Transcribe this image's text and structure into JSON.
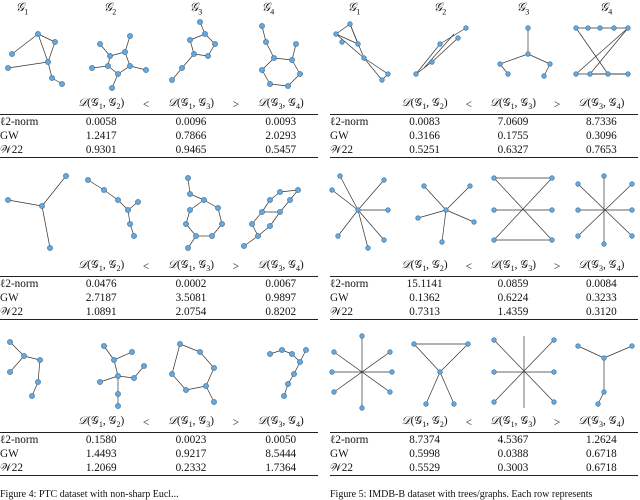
{
  "graph_labels": [
    "𝒢1",
    "𝒢2",
    "𝒢3",
    "𝒢4"
  ],
  "header_cols": [
    "𝒟(𝒢1, 𝒢2)",
    "<",
    "𝒟(𝒢1, 𝒢3)",
    ">",
    "𝒟(𝒢3, 𝒢4)"
  ],
  "left_tables": [
    {
      "rows": [
        {
          "method": "ℓ2-norm",
          "v": [
            "0.0058",
            "0.0096",
            "0.0093"
          ],
          "bold": [
            false,
            false,
            false
          ]
        },
        {
          "method": "GW",
          "v": [
            "1.2417",
            "0.7866",
            "2.0293"
          ],
          "bold": [
            false,
            false,
            false
          ]
        },
        {
          "method": "𝒲22",
          "v": [
            "0.9301",
            "0.9465",
            "0.5457"
          ],
          "bold": [
            true,
            true,
            true
          ]
        }
      ]
    },
    {
      "rows": [
        {
          "method": "ℓ2-norm",
          "v": [
            "0.0476",
            "0.0002",
            "0.0067"
          ],
          "bold": [
            false,
            false,
            false
          ]
        },
        {
          "method": "GW",
          "v": [
            "2.7187",
            "3.5081",
            "0.9897"
          ],
          "bold": [
            true,
            true,
            true
          ]
        },
        {
          "method": "𝒲22",
          "v": [
            "1.0891",
            "2.0754",
            "0.8202"
          ],
          "bold": [
            true,
            true,
            true
          ]
        }
      ]
    },
    {
      "rows": [
        {
          "method": "ℓ2-norm",
          "v": [
            "0.1580",
            "0.0023",
            "0.0050"
          ],
          "bold": [
            false,
            false,
            false
          ]
        },
        {
          "method": "GW",
          "v": [
            "1.4493",
            "0.9217",
            "8.5444"
          ],
          "bold": [
            false,
            false,
            false
          ]
        },
        {
          "method": "𝒲22",
          "v": [
            "1.2069",
            "0.2332",
            "1.7364"
          ],
          "bold": [
            false,
            false,
            false
          ]
        }
      ]
    }
  ],
  "right_tables": [
    {
      "rows": [
        {
          "method": "ℓ2-norm",
          "v": [
            "0.0083",
            "7.0609",
            "8.7336"
          ],
          "bold": [
            true,
            true,
            false
          ]
        },
        {
          "method": "GW",
          "v": [
            "0.3166",
            "0.1755",
            "0.3096"
          ],
          "bold": [
            false,
            false,
            false
          ]
        },
        {
          "method": "𝒲22",
          "v": [
            "0.5251",
            "0.6327",
            "0.7653"
          ],
          "bold": [
            true,
            true,
            false
          ]
        }
      ]
    },
    {
      "rows": [
        {
          "method": "ℓ2-norm",
          "v": [
            "15.1141",
            "0.0859",
            "0.0084"
          ],
          "bold": [
            false,
            false,
            false
          ]
        },
        {
          "method": "GW",
          "v": [
            "0.1362",
            "0.6224",
            "0.3233"
          ],
          "bold": [
            true,
            true,
            true
          ]
        },
        {
          "method": "𝒲22",
          "v": [
            "0.7313",
            "1.4359",
            "0.3120"
          ],
          "bold": [
            true,
            true,
            true
          ]
        }
      ]
    },
    {
      "rows": [
        {
          "method": "ℓ2-norm",
          "v": [
            "8.7374",
            "4.5367",
            "1.2624"
          ],
          "bold": [
            false,
            false,
            false
          ]
        },
        {
          "method": "GW",
          "v": [
            "0.5998",
            "0.0388",
            "0.6718"
          ],
          "bold": [
            false,
            false,
            false
          ]
        },
        {
          "method": "𝒲22",
          "v": [
            "0.5529",
            "0.3003",
            "0.6718"
          ],
          "bold": [
            false,
            false,
            false
          ]
        }
      ]
    }
  ],
  "captions": {
    "left": "Figure 4: PTC dataset with non-sharp Eucl...",
    "right": "Figure 5: IMDB-B dataset with trees/graphs. Each row represents"
  }
}
